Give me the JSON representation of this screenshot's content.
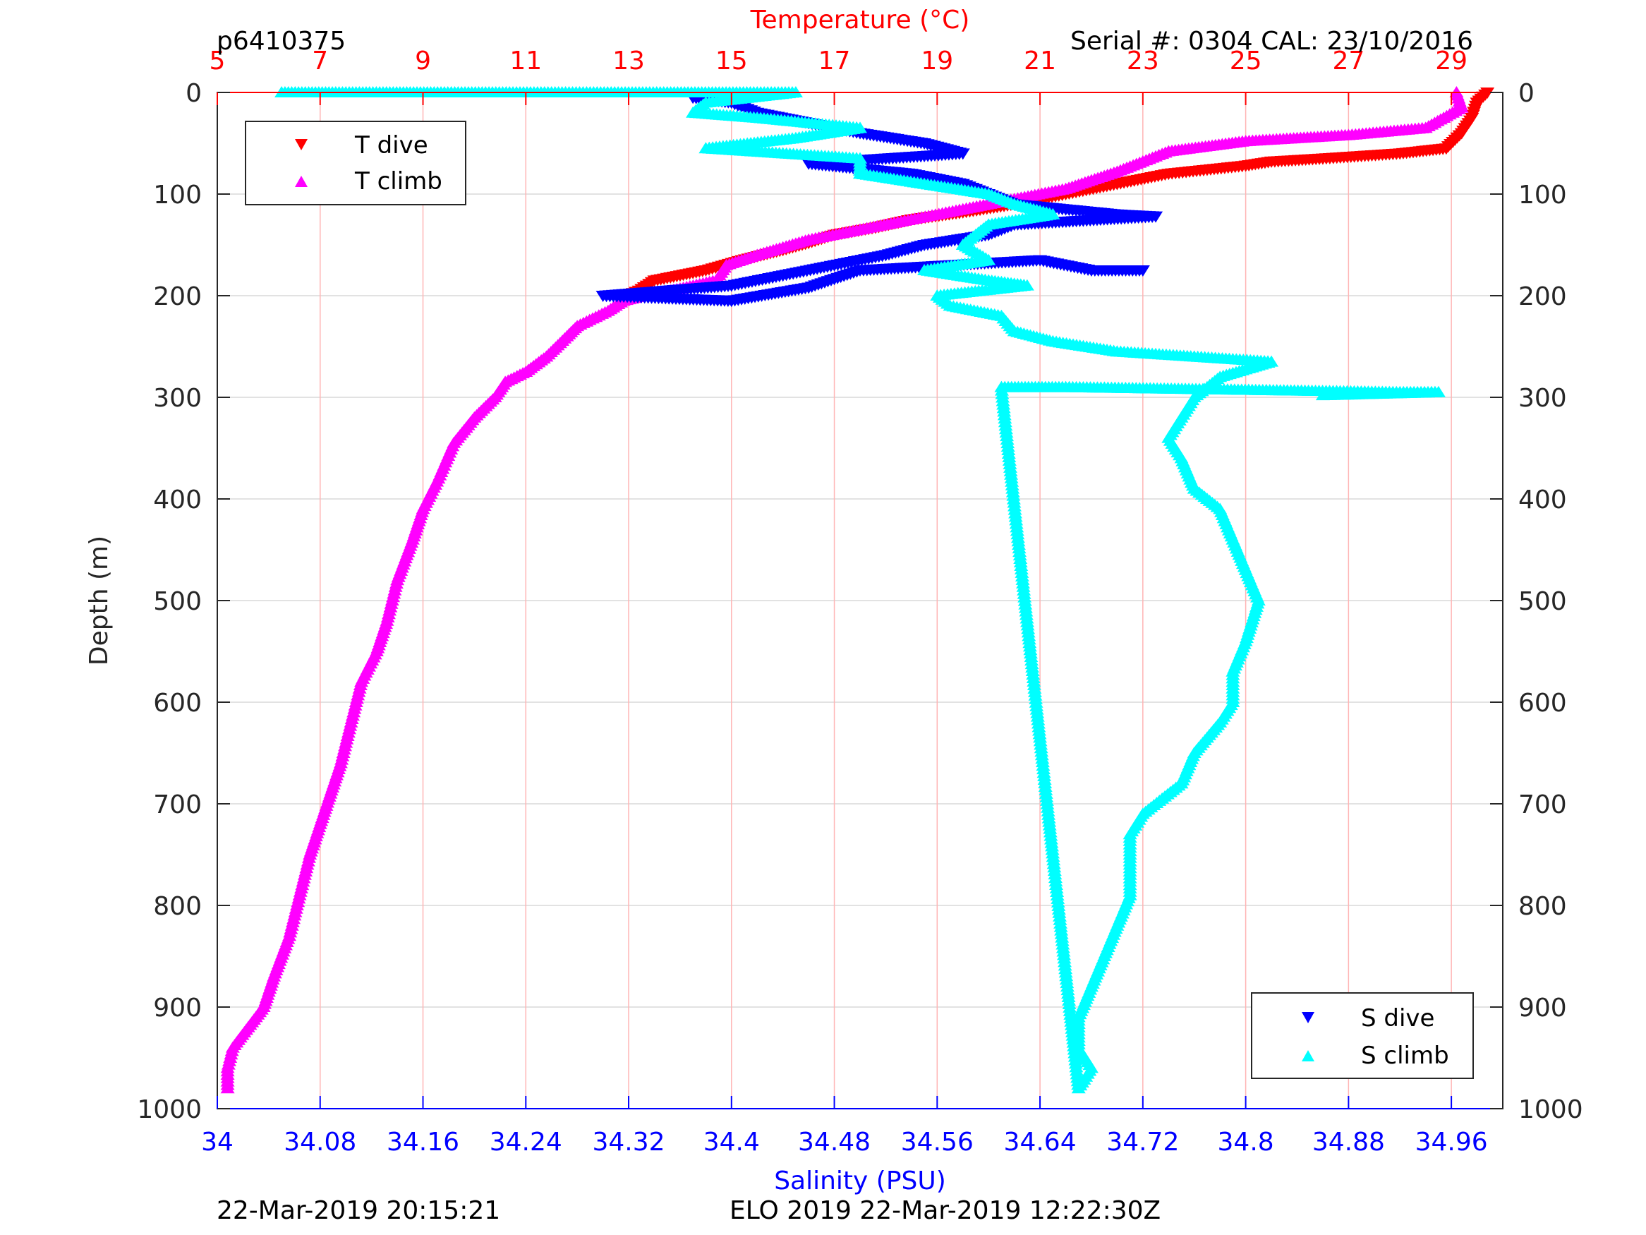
{
  "header": {
    "profile_id": "p6410375",
    "serial": "Serial #: 0304  CAL: 23/10/2016"
  },
  "footer": {
    "left": "22-Mar-2019 20:15:21",
    "center": "ELO 2019 22-Mar-2019 12:22:30Z"
  },
  "colors": {
    "t_dive": "#ff0000",
    "t_climb": "#ff00ff",
    "s_dive": "#0000ff",
    "s_climb": "#00ffff",
    "temp_axis": "#ff0000",
    "sal_axis": "#0000ff",
    "grid_temp": "#ffb4b4",
    "grid_depth": "#d9d9d9"
  },
  "chart_data": {
    "type": "scatter",
    "title": "",
    "ylabel": "Depth (m)",
    "ylim": [
      0,
      1000
    ],
    "yreversed": true,
    "yticks": [
      0,
      100,
      200,
      300,
      400,
      500,
      600,
      700,
      800,
      900,
      1000
    ],
    "temperature_axis": {
      "label": "Temperature (°C)",
      "position": "top",
      "range": [
        5,
        30
      ],
      "ticks": [
        5,
        7,
        9,
        11,
        13,
        15,
        17,
        19,
        21,
        23,
        25,
        27,
        29
      ]
    },
    "salinity_axis": {
      "label": "Salinity (PSU)",
      "position": "bottom",
      "range": [
        34,
        35
      ],
      "ticks": [
        34,
        34.08,
        34.16,
        34.24,
        34.32,
        34.4,
        34.48,
        34.56,
        34.64,
        34.72,
        34.8,
        34.88,
        34.96
      ]
    },
    "legend_temperature": {
      "placement": "top-left",
      "entries": [
        "T dive",
        "T climb"
      ]
    },
    "legend_salinity": {
      "placement": "bottom-right",
      "entries": [
        "S dive",
        "S climb"
      ]
    },
    "series": [
      {
        "name": "T dive",
        "axis": "temperature",
        "marker": "triangle-down",
        "points": [
          [
            29.7,
            0
          ],
          [
            29.5,
            10
          ],
          [
            29.4,
            25
          ],
          [
            29.2,
            40
          ],
          [
            28.9,
            55
          ],
          [
            28.0,
            60
          ],
          [
            26.5,
            65
          ],
          [
            25.5,
            68
          ],
          [
            25.0,
            72
          ],
          [
            23.5,
            80
          ],
          [
            22.5,
            90
          ],
          [
            21.5,
            100
          ],
          [
            20.5,
            110
          ],
          [
            19.5,
            118
          ],
          [
            18.5,
            125
          ],
          [
            17.8,
            133
          ],
          [
            17.0,
            140
          ],
          [
            16.5,
            148
          ],
          [
            16.0,
            155
          ],
          [
            15.2,
            165
          ],
          [
            14.5,
            175
          ],
          [
            14.0,
            180
          ],
          [
            13.5,
            185
          ],
          [
            13.2,
            195
          ],
          [
            12.9,
            201
          ]
        ]
      },
      {
        "name": "T climb",
        "axis": "temperature",
        "marker": "triangle-up",
        "points": [
          [
            29.1,
            0
          ],
          [
            29.2,
            15
          ],
          [
            28.5,
            35
          ],
          [
            27.0,
            42
          ],
          [
            25.0,
            48
          ],
          [
            23.5,
            58
          ],
          [
            22.5,
            78
          ],
          [
            21.5,
            95
          ],
          [
            20.5,
            105
          ],
          [
            19.5,
            115
          ],
          [
            18.5,
            125
          ],
          [
            17.5,
            135
          ],
          [
            16.5,
            145
          ],
          [
            15.5,
            160
          ],
          [
            14.9,
            170
          ],
          [
            14.7,
            185
          ],
          [
            14.0,
            193
          ],
          [
            13.3,
            200
          ],
          [
            12.9,
            205
          ],
          [
            12.6,
            215
          ],
          [
            12.0,
            230
          ],
          [
            11.8,
            240
          ],
          [
            11.4,
            260
          ],
          [
            11.0,
            275
          ],
          [
            10.6,
            285
          ],
          [
            10.4,
            300
          ],
          [
            10.0,
            320
          ],
          [
            9.6,
            345
          ],
          [
            9.3,
            380
          ],
          [
            9.0,
            410
          ],
          [
            8.8,
            440
          ],
          [
            8.5,
            480
          ],
          [
            8.3,
            520
          ],
          [
            8.1,
            550
          ],
          [
            7.8,
            580
          ],
          [
            7.6,
            620
          ],
          [
            7.4,
            660
          ],
          [
            7.2,
            690
          ],
          [
            7.0,
            720
          ],
          [
            6.8,
            750
          ],
          [
            6.6,
            790
          ],
          [
            6.4,
            830
          ],
          [
            6.1,
            870
          ],
          [
            5.9,
            900
          ],
          [
            5.6,
            920
          ],
          [
            5.3,
            940
          ],
          [
            5.2,
            960
          ],
          [
            5.2,
            980
          ]
        ]
      },
      {
        "name": "S dive",
        "axis": "salinity",
        "marker": "triangle-down",
        "points": [
          [
            34.37,
            5
          ],
          [
            34.4,
            10
          ],
          [
            34.42,
            20
          ],
          [
            34.46,
            30
          ],
          [
            34.5,
            40
          ],
          [
            34.55,
            50
          ],
          [
            34.58,
            60
          ],
          [
            34.52,
            65
          ],
          [
            34.46,
            70
          ],
          [
            34.54,
            80
          ],
          [
            34.58,
            90
          ],
          [
            34.6,
            100
          ],
          [
            34.62,
            110
          ],
          [
            34.66,
            115
          ],
          [
            34.7,
            120
          ],
          [
            34.73,
            122
          ],
          [
            34.62,
            130
          ],
          [
            34.6,
            140
          ],
          [
            34.55,
            150
          ],
          [
            34.52,
            160
          ],
          [
            34.48,
            170
          ],
          [
            34.44,
            180
          ],
          [
            34.4,
            190
          ],
          [
            34.35,
            195
          ],
          [
            34.3,
            200
          ],
          [
            34.4,
            205
          ],
          [
            34.46,
            192
          ],
          [
            34.5,
            175
          ],
          [
            34.64,
            165
          ],
          [
            34.68,
            175
          ],
          [
            34.72,
            175
          ]
        ]
      },
      {
        "name": "S climb",
        "axis": "salinity",
        "marker": "triangle-up",
        "points": [
          [
            34.05,
            0
          ],
          [
            34.1,
            0
          ],
          [
            34.15,
            0
          ],
          [
            34.23,
            0
          ],
          [
            34.35,
            0
          ],
          [
            34.42,
            0
          ],
          [
            34.45,
            0
          ],
          [
            34.38,
            10
          ],
          [
            34.37,
            20
          ],
          [
            34.42,
            25
          ],
          [
            34.5,
            35
          ],
          [
            34.45,
            45
          ],
          [
            34.38,
            55
          ],
          [
            34.5,
            65
          ],
          [
            34.5,
            80
          ],
          [
            34.55,
            90
          ],
          [
            34.6,
            100
          ],
          [
            34.62,
            110
          ],
          [
            34.65,
            120
          ],
          [
            34.6,
            130
          ],
          [
            34.58,
            150
          ],
          [
            34.6,
            165
          ],
          [
            34.55,
            175
          ],
          [
            34.6,
            185
          ],
          [
            34.63,
            190
          ],
          [
            34.56,
            200
          ],
          [
            34.57,
            210
          ],
          [
            34.61,
            220
          ],
          [
            34.62,
            235
          ],
          [
            34.65,
            245
          ],
          [
            34.7,
            255
          ],
          [
            34.76,
            260
          ],
          [
            34.82,
            265
          ],
          [
            34.78,
            280
          ],
          [
            34.76,
            300
          ],
          [
            34.75,
            320
          ],
          [
            34.74,
            340
          ],
          [
            34.75,
            360
          ],
          [
            34.76,
            390
          ],
          [
            34.78,
            410
          ],
          [
            34.79,
            440
          ],
          [
            34.8,
            470
          ],
          [
            34.81,
            500
          ],
          [
            34.8,
            540
          ],
          [
            34.79,
            570
          ],
          [
            34.79,
            600
          ],
          [
            34.78,
            620
          ],
          [
            34.76,
            650
          ],
          [
            34.75,
            680
          ],
          [
            34.72,
            710
          ],
          [
            34.71,
            730
          ],
          [
            34.71,
            760
          ],
          [
            34.71,
            790
          ],
          [
            34.7,
            820
          ],
          [
            34.69,
            850
          ],
          [
            34.68,
            880
          ],
          [
            34.67,
            910
          ],
          [
            34.67,
            940
          ],
          [
            34.68,
            960
          ],
          [
            34.67,
            980
          ],
          [
            34.61,
            290
          ],
          [
            34.66,
            290
          ],
          [
            34.92,
            295
          ],
          [
            34.95,
            295
          ],
          [
            34.86,
            298
          ]
        ]
      }
    ]
  }
}
